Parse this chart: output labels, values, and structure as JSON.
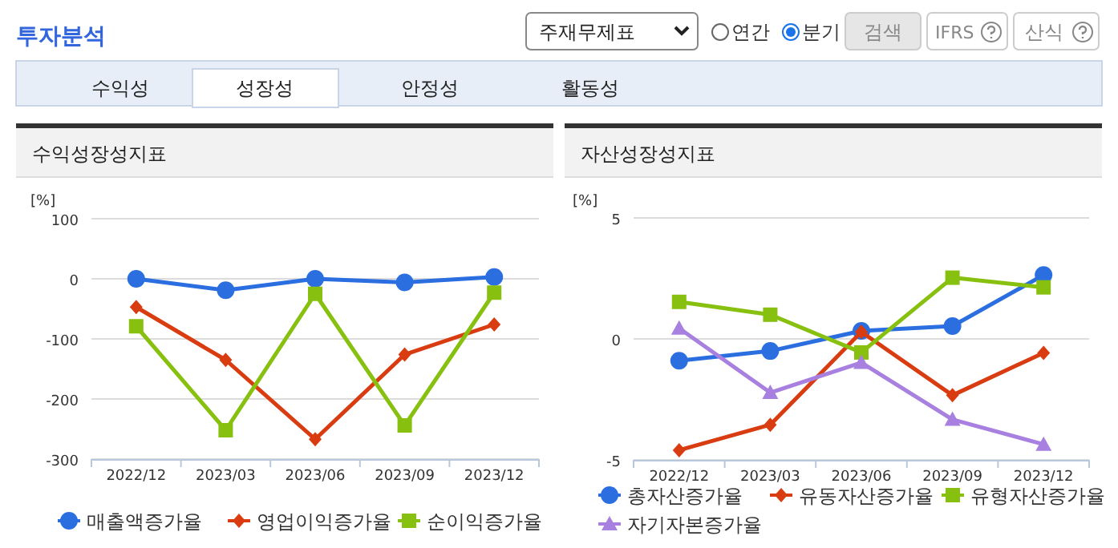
{
  "chart_data": [
    {
      "type": "other",
      "title": "투자분석",
      "annotations": [
        "주재무제표",
        "연간",
        "분기",
        "검색",
        "IFRS",
        "산식",
        "수익성",
        "성장성",
        "안정성",
        "활동성"
      ]
    },
    {
      "type": "line",
      "title": "수익성장성지표",
      "ylabel": "[%]",
      "categories": [
        "2022/12",
        "2023/03",
        "2023/06",
        "2023/09",
        "2023/12"
      ],
      "ylim": [
        -300,
        100
      ],
      "yticks": [
        -300,
        -200,
        -100,
        0,
        100
      ],
      "grid": "y",
      "legend": "bottom",
      "series": [
        {
          "name": "매출액증가율",
          "color": "#2a6ee0",
          "marker": "circle",
          "values": [
            0,
            -19,
            0,
            -6,
            3
          ]
        },
        {
          "name": "영업이익증가율",
          "color": "#d83c10",
          "marker": "diamond",
          "values": [
            -47,
            -135,
            -267,
            -126,
            -76
          ]
        },
        {
          "name": "순이익증가율",
          "color": "#88c010",
          "marker": "square",
          "values": [
            -79,
            -252,
            -25,
            -244,
            -23
          ]
        }
      ]
    },
    {
      "type": "line",
      "title": "자산성장성지표",
      "ylabel": "[%]",
      "categories": [
        "2022/12",
        "2023/03",
        "2023/06",
        "2023/09",
        "2023/12"
      ],
      "ylim": [
        -5,
        5
      ],
      "yticks": [
        -5,
        0,
        5
      ],
      "grid": "y",
      "legend": "bottom",
      "series": [
        {
          "name": "총자산증가율",
          "color": "#2a6ee0",
          "marker": "circle",
          "values": [
            -0.9,
            -0.5,
            0.33,
            0.53,
            2.64
          ]
        },
        {
          "name": "유동자산증가율",
          "color": "#d83c10",
          "marker": "diamond",
          "values": [
            -4.6,
            -3.55,
            0.29,
            -2.33,
            -0.58
          ]
        },
        {
          "name": "유형자산증가율",
          "color": "#88c010",
          "marker": "square",
          "values": [
            1.53,
            1.0,
            -0.56,
            2.53,
            2.13
          ]
        },
        {
          "name": "자기자본증가율",
          "color": "#a880e0",
          "marker": "triangle",
          "values": [
            0.44,
            -2.22,
            -0.98,
            -3.33,
            -4.36
          ]
        }
      ]
    }
  ]
}
